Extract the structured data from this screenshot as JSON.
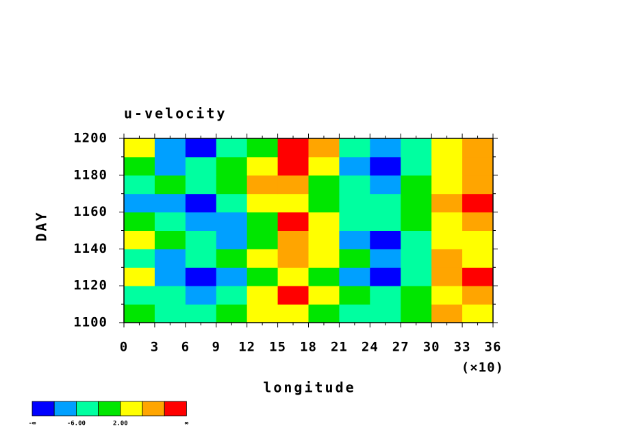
{
  "chart_data": {
    "type": "heatmap",
    "title": "u-velocity",
    "x_label": "longitude",
    "y_label": "DAY",
    "x_multiplier": "(×10)",
    "xlim": [
      0,
      360
    ],
    "ylim": [
      1100,
      1200
    ],
    "xticks": [
      {
        "value": 0,
        "label": "0"
      },
      {
        "value": 30,
        "label": "3"
      },
      {
        "value": 60,
        "label": "6"
      },
      {
        "value": 90,
        "label": "9"
      },
      {
        "value": 120,
        "label": "12"
      },
      {
        "value": 150,
        "label": "15"
      },
      {
        "value": 180,
        "label": "18"
      },
      {
        "value": 210,
        "label": "21"
      },
      {
        "value": 240,
        "label": "24"
      },
      {
        "value": 270,
        "label": "27"
      },
      {
        "value": 300,
        "label": "30"
      },
      {
        "value": 330,
        "label": "33"
      },
      {
        "value": 360,
        "label": "36"
      }
    ],
    "yticks": [
      1100,
      1120,
      1140,
      1160,
      1180,
      1200
    ],
    "z": [
      [
        0,
        -4,
        -4,
        0,
        4,
        4,
        0,
        -4,
        -4,
        0,
        8,
        4
      ],
      [
        -4,
        -4,
        -8,
        -4,
        4,
        12,
        4,
        0,
        -4,
        0,
        4,
        8
      ],
      [
        4,
        -8,
        -12,
        -8,
        0,
        4,
        0,
        -8,
        -12,
        -4,
        8,
        12
      ],
      [
        -4,
        -8,
        -4,
        0,
        4,
        8,
        4,
        0,
        -8,
        -4,
        8,
        4
      ],
      [
        4,
        0,
        -4,
        -8,
        0,
        8,
        4,
        -8,
        -12,
        -4,
        4,
        4
      ],
      [
        0,
        -4,
        -8,
        -8,
        0,
        12,
        4,
        -4,
        -4,
        0,
        4,
        8
      ],
      [
        -8,
        -8,
        -12,
        -4,
        4,
        4,
        0,
        -4,
        -4,
        0,
        8,
        12
      ],
      [
        -4,
        0,
        -4,
        0,
        8,
        8,
        0,
        -4,
        -8,
        0,
        4,
        8
      ],
      [
        0,
        -8,
        -4,
        0,
        4,
        12,
        4,
        -8,
        -12,
        -4,
        4,
        8
      ],
      [
        4,
        -8,
        -12,
        -4,
        0,
        12,
        8,
        -4,
        -8,
        -4,
        4,
        8
      ]
    ],
    "levels": [
      -10,
      {
        "value": -6,
        "label": "-6.00"
      },
      -2,
      {
        "value": 2,
        "label": "2.00"
      },
      6,
      10
    ],
    "colors": [
      "#0000ff",
      "#00a0ff",
      "#00ffa0",
      "#00e600",
      "#ffff00",
      "#ffa500",
      "#ff0000"
    ],
    "low_label": "-∞",
    "high_label": "∞"
  }
}
